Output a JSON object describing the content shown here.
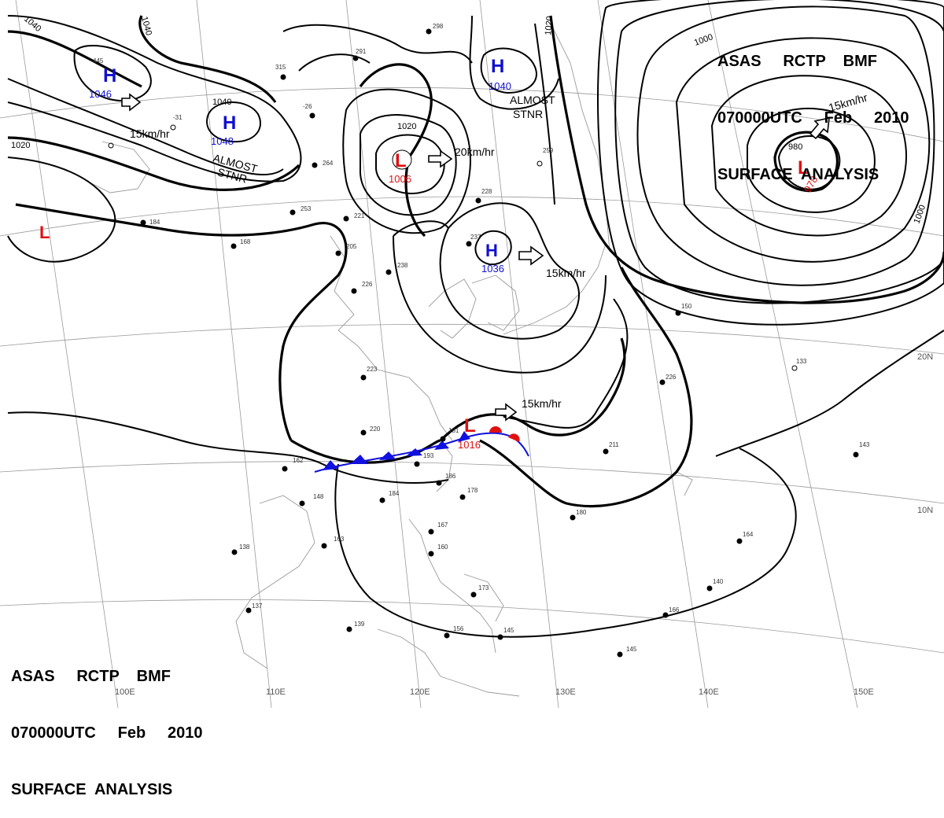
{
  "header": {
    "line1": "ASAS     RCTP    BMF",
    "line2": "070000UTC     Feb     2010",
    "line3": "SURFACE  ANALYSIS"
  },
  "systems": [
    {
      "type": "H",
      "value": "1046",
      "color": "#1010d0"
    },
    {
      "type": "H",
      "value": "1048",
      "color": "#1010d0"
    },
    {
      "type": "H",
      "value": "1040",
      "color": "#1010d0"
    },
    {
      "type": "H",
      "value": "1036",
      "color": "#1010d0"
    },
    {
      "type": "L",
      "value": "1006",
      "color": "#e01010"
    },
    {
      "type": "L",
      "value": "978",
      "color": "#e01010"
    },
    {
      "type": "L",
      "value": "1016",
      "color": "#e01010"
    },
    {
      "type": "L",
      "value": "",
      "color": "#e01010"
    }
  ],
  "motion_labels": {
    "m1": "15km/hr",
    "m2": "20km/hr",
    "m3": "15km/hr",
    "m4": "15km/hr",
    "m5": "15km/hr",
    "stnr": "ALMOST\nSTNR"
  },
  "isobar_labels": {
    "i1040a": "1040",
    "i1040b": "1040",
    "i1040c": "1040",
    "i1020a": "1020",
    "i1020b": "1020",
    "i1020c": "1020",
    "i1000a": "1000",
    "i1000b": "1000",
    "i980": "980"
  },
  "grid_labels": {
    "lon100": "100E",
    "lon110": "110E",
    "lon120": "120E",
    "lon130": "130E",
    "lon140": "140E",
    "lon150": "150E",
    "lat20": "20N",
    "lat10": "10N"
  },
  "front_colors": {
    "cold": "#1010e0",
    "warm": "#e01010"
  },
  "station_obs": [
    "445",
    "-31",
    "315",
    "-26",
    "298",
    "291",
    "264",
    "253",
    "221",
    "205",
    "226",
    "238",
    "184",
    "168",
    "228",
    "237",
    "259",
    "223",
    "220",
    "181",
    "193",
    "162",
    "148",
    "184",
    "186",
    "178",
    "163",
    "138",
    "137",
    "167",
    "160",
    "173",
    "139",
    "156",
    "145",
    "226",
    "211",
    "143",
    "180",
    "164",
    "140",
    "166",
    "145",
    "133",
    "150"
  ]
}
